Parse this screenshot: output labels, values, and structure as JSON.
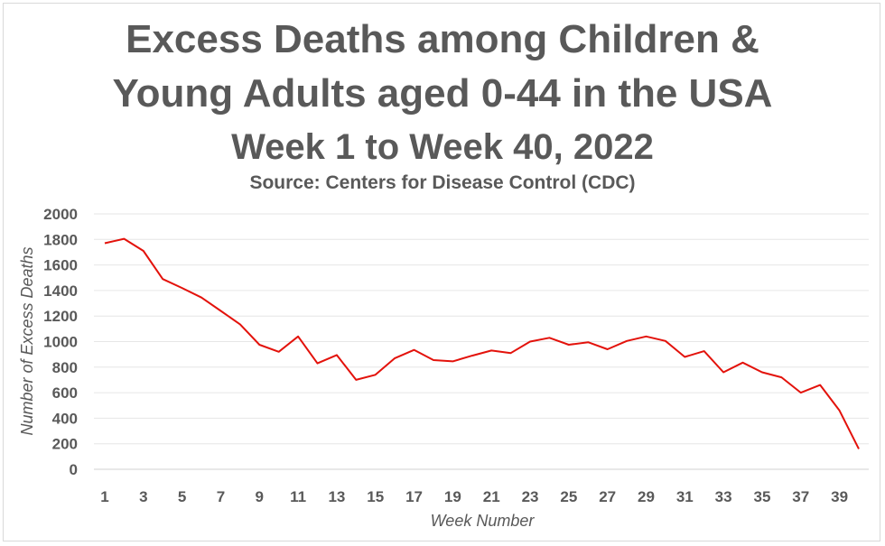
{
  "chart_data": {
    "type": "line",
    "title": {
      "line1": "Excess Deaths among Children &",
      "line2": "Young Adults aged 0-44 in the USA",
      "line3": "Week 1 to Week 40, 2022"
    },
    "subtitle": "Source: Centers for Disease Control (CDC)",
    "xlabel": "Week Number",
    "ylabel": "Number of Excess Deaths",
    "ylim": [
      0,
      2000
    ],
    "y_ticks": [
      0,
      200,
      400,
      600,
      800,
      1000,
      1200,
      1400,
      1600,
      1800,
      2000
    ],
    "x_tick_labels": [
      1,
      3,
      5,
      7,
      9,
      11,
      13,
      15,
      17,
      19,
      21,
      23,
      25,
      27,
      29,
      31,
      33,
      35,
      37,
      39
    ],
    "grid": true,
    "line_color": "#e3120b",
    "series": [
      {
        "x": [
          1,
          2,
          3,
          4,
          5,
          6,
          7,
          8,
          9,
          10,
          11,
          12,
          13,
          14,
          15,
          16,
          17,
          18,
          19,
          20,
          21,
          22,
          23,
          24,
          25,
          26,
          27,
          28,
          29,
          30,
          31,
          32,
          33,
          34,
          35,
          36,
          37,
          38,
          39,
          40
        ],
        "values": [
          1770,
          1805,
          1710,
          1490,
          1420,
          1345,
          1240,
          1135,
          975,
          920,
          1040,
          830,
          895,
          700,
          740,
          870,
          935,
          855,
          845,
          890,
          930,
          910,
          1000,
          1030,
          975,
          995,
          940,
          1005,
          1040,
          1005,
          880,
          925,
          760,
          835,
          760,
          720,
          600,
          660,
          460,
          160
        ]
      }
    ]
  }
}
